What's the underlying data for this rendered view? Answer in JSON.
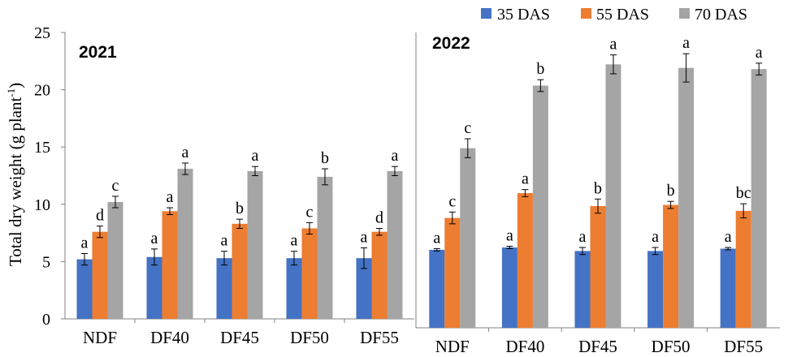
{
  "legend": [
    {
      "label": "35 DAS",
      "color": "#4472C4"
    },
    {
      "label": "55 DAS",
      "color": "#ED7D31"
    },
    {
      "label": "70 DAS",
      "color": "#A5A5A5"
    }
  ],
  "ylabel": "Total dry weight (g plant",
  "ylabel_sup": "-1",
  "ylabel_close": ")",
  "chart_data": [
    {
      "type": "bar",
      "title": "2021",
      "categories": [
        "NDF",
        "DF40",
        "DF45",
        "DF50",
        "DF55"
      ],
      "ylim": [
        0,
        25
      ],
      "yticks": [
        0,
        5,
        10,
        15,
        20,
        25
      ],
      "series": [
        {
          "name": "35 DAS",
          "values": [
            5.2,
            5.4,
            5.3,
            5.3,
            5.3
          ],
          "errors": [
            0.5,
            0.7,
            0.6,
            0.6,
            0.9
          ],
          "labels": [
            "a",
            "a",
            "a",
            "a",
            "a"
          ]
        },
        {
          "name": "55 DAS",
          "values": [
            7.6,
            9.4,
            8.3,
            7.9,
            7.6
          ],
          "errors": [
            0.5,
            0.3,
            0.4,
            0.5,
            0.3
          ],
          "labels": [
            "d",
            "a",
            "b",
            "c",
            "d"
          ]
        },
        {
          "name": "70 DAS",
          "values": [
            10.2,
            13.1,
            12.9,
            12.4,
            12.9
          ],
          "errors": [
            0.5,
            0.5,
            0.4,
            0.7,
            0.4
          ],
          "labels": [
            "c",
            "a",
            "a",
            "b",
            "a"
          ]
        }
      ]
    },
    {
      "type": "bar",
      "title": "2022",
      "categories": [
        "NDF",
        "DF40",
        "DF45",
        "DF50",
        "DF55"
      ],
      "ylim": [
        0,
        25
      ],
      "series": [
        {
          "name": "35 DAS",
          "values": [
            6.6,
            6.8,
            6.5,
            6.5,
            6.7
          ],
          "errors": [
            0.1,
            0.1,
            0.3,
            0.3,
            0.1
          ],
          "labels": [
            "a",
            "a",
            "a",
            "a",
            "a"
          ]
        },
        {
          "name": "55 DAS",
          "values": [
            9.3,
            11.4,
            10.3,
            10.4,
            9.9
          ],
          "errors": [
            0.5,
            0.3,
            0.6,
            0.3,
            0.6
          ],
          "labels": [
            "c",
            "a",
            "b",
            "b",
            "bc"
          ]
        },
        {
          "name": "70 DAS",
          "values": [
            15.2,
            20.5,
            22.3,
            22.0,
            21.9
          ],
          "errors": [
            0.8,
            0.5,
            0.8,
            1.2,
            0.5
          ],
          "labels": [
            "c",
            "b",
            "a",
            "a",
            "a"
          ]
        }
      ]
    }
  ]
}
